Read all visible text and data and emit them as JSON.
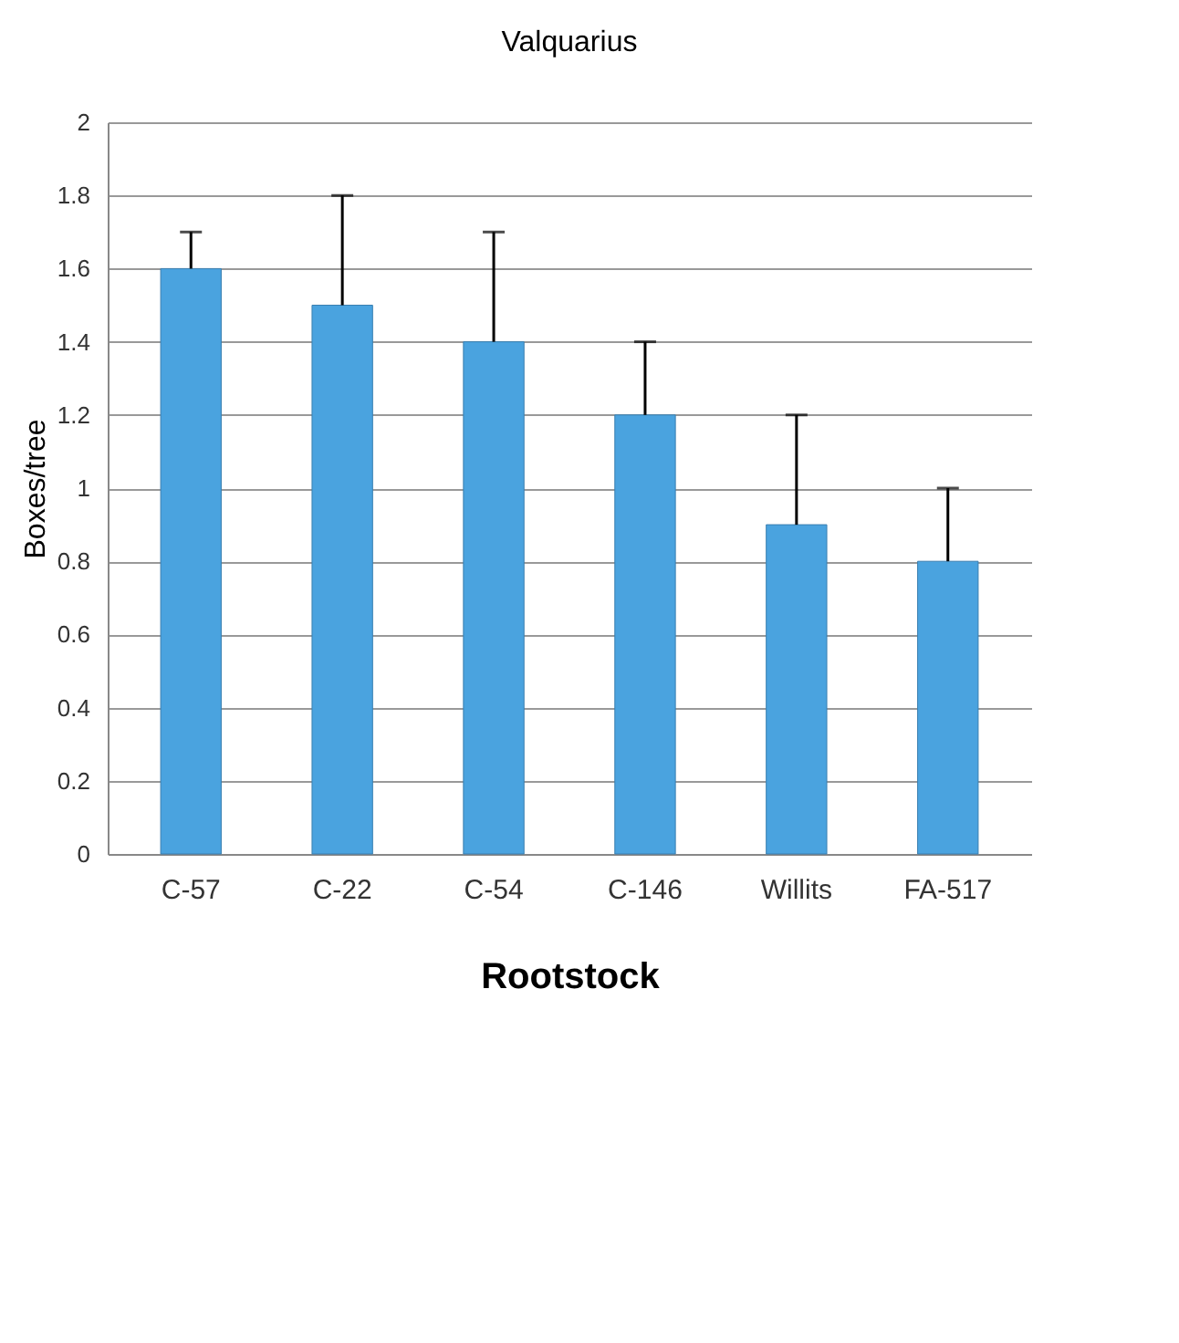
{
  "chart_data": {
    "type": "bar",
    "title": "Valquarius",
    "xlabel": "Rootstock",
    "ylabel": "Boxes/tree",
    "categories": [
      "C-57",
      "C-22",
      "C-54",
      "C-146",
      "Willits",
      "FA-517"
    ],
    "values": [
      1.6,
      1.5,
      1.4,
      1.2,
      0.9,
      0.8
    ],
    "errors": [
      [
        1.6,
        1.7
      ],
      [
        1.5,
        1.8
      ],
      [
        1.4,
        1.7
      ],
      [
        1.2,
        1.4
      ],
      [
        0.9,
        1.2
      ],
      [
        0.8,
        1.0
      ]
    ],
    "color": "#4aa3df",
    "ylim": [
      0,
      2
    ],
    "yticks": [
      0,
      0.2,
      0.4,
      0.6,
      0.8,
      1,
      1.2,
      1.4,
      1.6,
      1.8,
      2
    ],
    "grid": "y"
  }
}
